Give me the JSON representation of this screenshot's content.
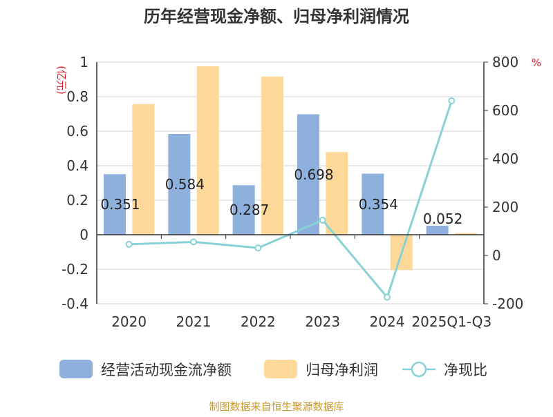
{
  "chart_data": {
    "type": "bar",
    "title": "历年经营现金净额、归母净利润情况",
    "left_axis_unit": "(亿元)",
    "right_axis_unit": "%",
    "categories": [
      "2020",
      "2021",
      "2022",
      "2023",
      "2024",
      "2025Q1-Q3"
    ],
    "left_ylim": [
      -0.4,
      1
    ],
    "left_ticks": [
      "1",
      "0.8",
      "0.6",
      "0.4",
      "0.2",
      "0",
      "-0.2",
      "-0.4"
    ],
    "left_tick_values": [
      1,
      0.8,
      0.6,
      0.4,
      0.2,
      0,
      -0.2,
      -0.4
    ],
    "right_ylim": [
      -200,
      800
    ],
    "right_ticks": [
      "800",
      "600",
      "400",
      "200",
      "0",
      "-200"
    ],
    "right_tick_values": [
      800,
      600,
      400,
      200,
      0,
      -200
    ],
    "series": [
      {
        "name": "经营活动现金流净额",
        "type": "bar",
        "axis": "left",
        "color": "#8eb0dc",
        "values": [
          0.351,
          0.584,
          0.287,
          0.698,
          0.354,
          0.052
        ],
        "labels": [
          "0.351",
          "0.584",
          "0.287",
          "0.698",
          "0.354",
          "0.052"
        ]
      },
      {
        "name": "归母净利润",
        "type": "bar",
        "axis": "left",
        "color": "#fdd899",
        "values": [
          0.757,
          0.976,
          0.916,
          0.479,
          -0.205,
          0.01
        ]
      },
      {
        "name": "净现比",
        "type": "line",
        "axis": "right",
        "color": "#88d1d6",
        "values": [
          46,
          56,
          31,
          146,
          -173,
          640
        ]
      }
    ],
    "source": "制图数据来自恒生聚源数据库"
  }
}
